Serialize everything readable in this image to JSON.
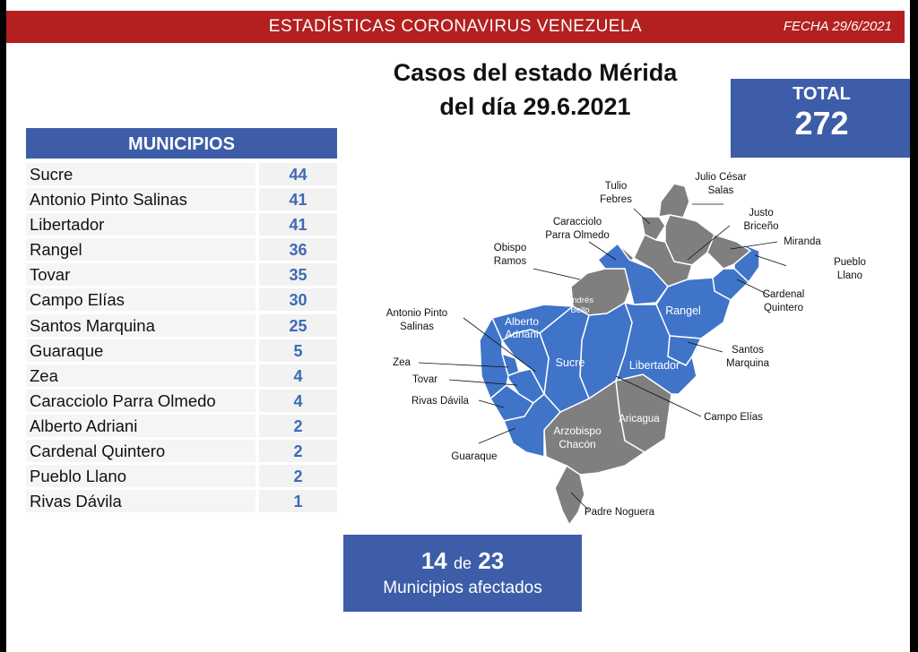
{
  "header": {
    "title": "ESTADÍSTICAS CORONAVIRUS VENEZUELA",
    "date": "FECHA 29/6/2021"
  },
  "headline": {
    "line1": "Casos del estado Mérida",
    "line2": "del día 29.6.2021"
  },
  "total": {
    "label": "TOTAL",
    "value": "272"
  },
  "municipios": {
    "header": "MUNICIPIOS",
    "rows": [
      {
        "name": "Sucre",
        "cases": "44"
      },
      {
        "name": "Antonio Pinto Salinas",
        "cases": "41"
      },
      {
        "name": "Libertador",
        "cases": "41"
      },
      {
        "name": "Rangel",
        "cases": "36"
      },
      {
        "name": "Tovar",
        "cases": "35"
      },
      {
        "name": "Campo Elías",
        "cases": "30"
      },
      {
        "name": "Santos Marquina",
        "cases": "25"
      },
      {
        "name": "Guaraque",
        "cases": "5"
      },
      {
        "name": "Zea",
        "cases": "4"
      },
      {
        "name": "Caracciolo Parra Olmedo",
        "cases": "4"
      },
      {
        "name": "Alberto Adriani",
        "cases": "2"
      },
      {
        "name": "Cardenal Quintero",
        "cases": "2"
      },
      {
        "name": "Pueblo Llano",
        "cases": "2"
      },
      {
        "name": "Rivas Dávila",
        "cases": "1"
      }
    ]
  },
  "map": {
    "colors": {
      "affected": "#3f74c9",
      "unaffected": "#7f7f7f",
      "border": "#ffffff"
    },
    "labels": {
      "tulio_febres": "Tulio\nFebres",
      "julio_cesar_salas": "Julio César\nSalas",
      "justo_briceno": "Justo\nBriceño",
      "caracciolo": "Caracciolo\nParra Olmedo",
      "miranda": "Miranda",
      "obispo_ramos": "Obispo\nRamos",
      "pueblo_llano": "Pueblo\nLlano",
      "cardenal_quintero": "Cardenal\nQuintero",
      "andres_bello": "Andrés\nBello",
      "antonio_pinto_salinas": "Antonio Pinto\nSalinas",
      "alberto_adriani": "Alberto\nAdriani",
      "rangel": "Rangel",
      "santos_marquina": "Santos\nMarquina",
      "zea": "Zea",
      "tovar": "Tovar",
      "sucre": "Sucre",
      "libertador": "Libertador",
      "rivas_davila": "Rivas Dávila",
      "aricagua": "Aricagua",
      "campo_elias": "Campo Elías",
      "arzobispo_chacon": "Arzobispo\nChacón",
      "guaraque": "Guaraque",
      "padre_noguera": "Padre Noguera"
    }
  },
  "affected": {
    "count": "14",
    "connector": "de",
    "total": "23",
    "label": "Municipios afectados"
  }
}
